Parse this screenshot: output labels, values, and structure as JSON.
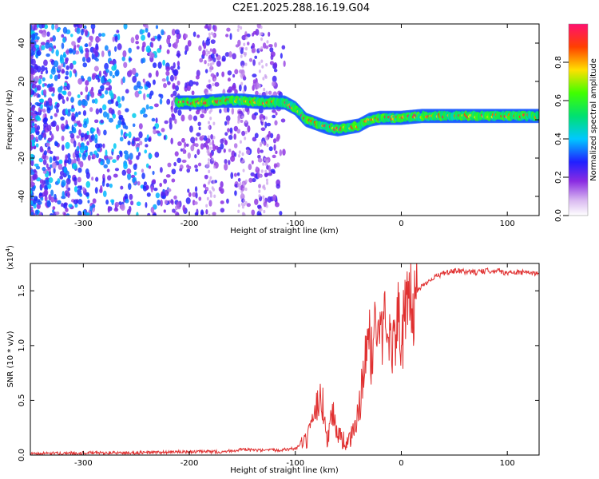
{
  "title": "C2E1.2025.288.16.19.G04",
  "chart_data": [
    {
      "type": "heatmap",
      "name": "spectrogram",
      "xlabel": "Height of straight line (km)",
      "ylabel": "Frequency (Hz)",
      "xlim": [
        -350,
        130
      ],
      "ylim": [
        -50,
        50
      ],
      "xticks": [
        -300,
        -200,
        -100,
        0,
        100
      ],
      "yticks": [
        -40,
        -20,
        0,
        20,
        40
      ],
      "colorbar": {
        "label": "Normalized spectral amplitude",
        "ticks": [
          0.0,
          0.2,
          0.4,
          0.6,
          0.8
        ],
        "range": [
          0,
          1
        ]
      },
      "main_trace": [
        {
          "x": -212,
          "y": 9
        },
        {
          "x": -190,
          "y": 9
        },
        {
          "x": -170,
          "y": 10
        },
        {
          "x": -150,
          "y": 10
        },
        {
          "x": -130,
          "y": 9
        },
        {
          "x": -110,
          "y": 9
        },
        {
          "x": -100,
          "y": 6
        },
        {
          "x": -90,
          "y": 0
        },
        {
          "x": -80,
          "y": -2
        },
        {
          "x": -70,
          "y": -4
        },
        {
          "x": -60,
          "y": -5
        },
        {
          "x": -50,
          "y": -4
        },
        {
          "x": -40,
          "y": -3
        },
        {
          "x": -30,
          "y": 0
        },
        {
          "x": -20,
          "y": 1
        },
        {
          "x": 0,
          "y": 1
        },
        {
          "x": 20,
          "y": 2
        },
        {
          "x": 50,
          "y": 2
        },
        {
          "x": 80,
          "y": 2
        },
        {
          "x": 100,
          "y": 2
        },
        {
          "x": 130,
          "y": 2
        }
      ]
    },
    {
      "type": "line",
      "name": "snr",
      "xlabel": "Height of straight line (km)",
      "ylabel": "SNR (10 * v/v)",
      "multiplier": "(x10",
      "multiplier_exp": "4",
      "multiplier_close": ")",
      "xlim": [
        -350,
        130
      ],
      "ylim": [
        0,
        1.75
      ],
      "xticks": [
        -300,
        -200,
        -100,
        0,
        100
      ],
      "yticks": [
        0.0,
        0.5,
        1.0,
        1.5
      ],
      "ytick_labels": [
        "0.0",
        "0.5",
        "1.0",
        "1.5"
      ],
      "color": "#e03030",
      "series": [
        {
          "name": "SNR",
          "points": [
            {
              "x": -350,
              "y": 0.01
            },
            {
              "x": -300,
              "y": 0.02
            },
            {
              "x": -250,
              "y": 0.02
            },
            {
              "x": -200,
              "y": 0.03
            },
            {
              "x": -170,
              "y": 0.03
            },
            {
              "x": -150,
              "y": 0.05
            },
            {
              "x": -130,
              "y": 0.04
            },
            {
              "x": -110,
              "y": 0.05
            },
            {
              "x": -100,
              "y": 0.06
            },
            {
              "x": -90,
              "y": 0.12
            },
            {
              "x": -82,
              "y": 0.3
            },
            {
              "x": -78,
              "y": 0.55
            },
            {
              "x": -74,
              "y": 0.45
            },
            {
              "x": -70,
              "y": 0.15
            },
            {
              "x": -65,
              "y": 0.4
            },
            {
              "x": -60,
              "y": 0.2
            },
            {
              "x": -52,
              "y": 0.1
            },
            {
              "x": -45,
              "y": 0.2
            },
            {
              "x": -40,
              "y": 0.4
            },
            {
              "x": -36,
              "y": 0.7
            },
            {
              "x": -32,
              "y": 1.05
            },
            {
              "x": -28,
              "y": 0.95
            },
            {
              "x": -24,
              "y": 1.2
            },
            {
              "x": -18,
              "y": 1.1
            },
            {
              "x": -12,
              "y": 1.3
            },
            {
              "x": -8,
              "y": 0.95
            },
            {
              "x": -4,
              "y": 1.25
            },
            {
              "x": 0,
              "y": 1.1
            },
            {
              "x": 5,
              "y": 1.3
            },
            {
              "x": 10,
              "y": 1.35
            },
            {
              "x": 15,
              "y": 1.5
            },
            {
              "x": 20,
              "y": 1.55
            },
            {
              "x": 30,
              "y": 1.62
            },
            {
              "x": 40,
              "y": 1.66
            },
            {
              "x": 50,
              "y": 1.68
            },
            {
              "x": 70,
              "y": 1.67
            },
            {
              "x": 90,
              "y": 1.69
            },
            {
              "x": 100,
              "y": 1.66
            },
            {
              "x": 110,
              "y": 1.67
            },
            {
              "x": 130,
              "y": 1.66
            }
          ]
        }
      ]
    }
  ]
}
